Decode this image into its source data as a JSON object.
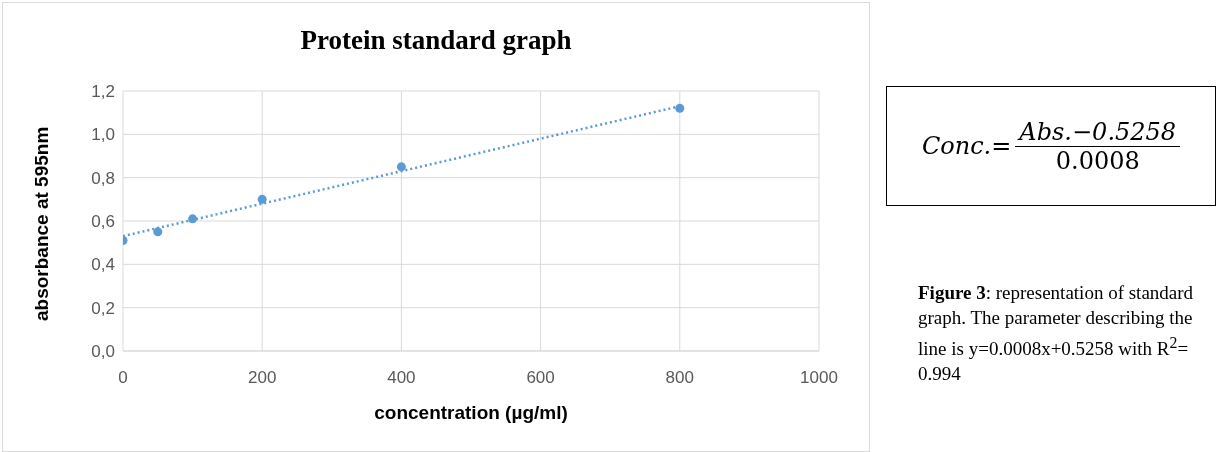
{
  "chart_data": {
    "type": "scatter",
    "title": "Protein standard graph",
    "xlabel": "concentration (µg/ml)",
    "ylabel": "absorbance at 595nm",
    "xlim": [
      0,
      1000
    ],
    "xticks": [
      0,
      200,
      400,
      600,
      800,
      1000
    ],
    "ylim": [
      0,
      1.2
    ],
    "yticks": [
      {
        "value": 0,
        "label": "0,0"
      },
      {
        "value": 0.2,
        "label": "0,2"
      },
      {
        "value": 0.4,
        "label": "0,4"
      },
      {
        "value": 0.6,
        "label": "0,6"
      },
      {
        "value": 0.8,
        "label": "0,8"
      },
      {
        "value": 1.0,
        "label": "1,0"
      },
      {
        "value": 1.2,
        "label": "1,2"
      }
    ],
    "grid": true,
    "series": [
      {
        "marker": "circle",
        "color": "#5b9bd5",
        "x": [
          0,
          50,
          100,
          200,
          400,
          800
        ],
        "values": [
          0.51,
          0.55,
          0.61,
          0.7,
          0.85,
          1.12
        ]
      },
      {
        "type": "line",
        "line_style": "dotted",
        "color": "#5b9bd5",
        "x": [
          0,
          800
        ],
        "values": [
          0.53,
          1.13
        ]
      }
    ],
    "annotations": [
      "Conc.=",
      "Abs.−0.5258",
      "0.0008",
      "Figure 3: representation of standard graph. The parameter describing the line is y=0.0008x+0.5258 with R$^{2}$= 0.994"
    ]
  }
}
